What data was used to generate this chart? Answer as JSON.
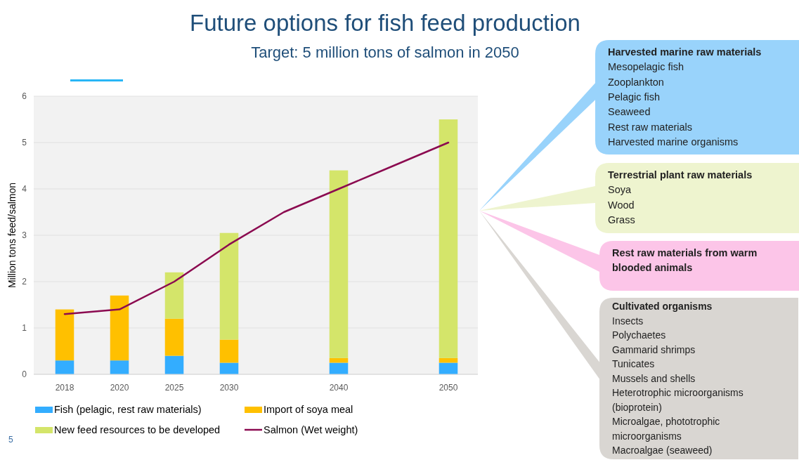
{
  "chart_data": {
    "type": "bar",
    "title": "Future options for fish feed production",
    "subtitle": "Target: 5 million tons of salmon in 2050",
    "ylabel": "Million tons feed/salmon",
    "categories": [
      "2018",
      "2020",
      "2025",
      "2030",
      null,
      "2040",
      null,
      "2050"
    ],
    "stacked": true,
    "series": [
      {
        "name": "Fish (pelagic, rest raw materials)",
        "color": "#33adff",
        "values": [
          0.3,
          0.3,
          0.4,
          0.25,
          null,
          0.25,
          null,
          0.25
        ]
      },
      {
        "name": "Import of soya meal",
        "color": "#ffc000",
        "values": [
          1.1,
          1.4,
          0.8,
          0.5,
          null,
          0.1,
          null,
          0.1
        ]
      },
      {
        "name": "New feed resources to be developed",
        "color": "#d4e56a",
        "values": [
          0,
          0,
          1.0,
          2.3,
          null,
          4.05,
          null,
          5.15
        ]
      },
      {
        "name": "Salmon (Wet weight)",
        "type": "line",
        "color": "#8b0a50",
        "values": [
          1.3,
          1.4,
          2.0,
          2.8,
          3.5,
          4.0,
          4.5,
          5.0
        ]
      }
    ],
    "ylim": [
      0,
      6
    ],
    "yticks": [
      0,
      1,
      2,
      3,
      4,
      5,
      6
    ],
    "grid": "y",
    "legend": "bottom",
    "annotations": [
      "Harvested marine raw materials\nMesopelagic fish\nZooplankton\nPelagic fish\nSeaweed\nRest raw materials\nHarvested marine organisms",
      "Terrestrial plant raw materials\nSoya\nWood\nGrass",
      "Rest raw materials from warm\nblooded animals",
      "Cultivated organisms\nInsects\nPolychaetes\nGammarid shrimps\nTunicates\nMussels and shells\nHeterotrophic microorganisms\n(bioprotein)\nMicroalgae, phototrophic\nmicroorganisms\nMacroalgae (seaweed)",
      "5"
    ]
  }
}
